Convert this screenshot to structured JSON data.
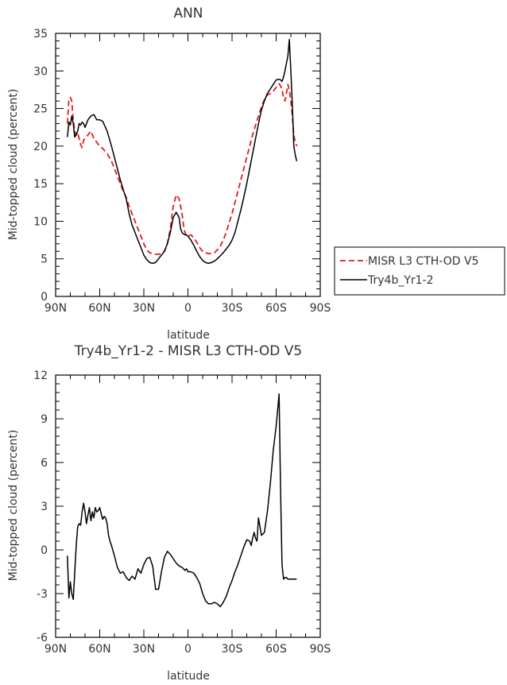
{
  "chart_data": [
    {
      "type": "line",
      "title": "ANN",
      "xlabel": "latitude",
      "ylabel": "Mid-topped cloud (percent)",
      "x_ticks": [
        90,
        60,
        30,
        0,
        -30,
        -60,
        -90
      ],
      "x_tick_labels": [
        "90N",
        "60N",
        "30N",
        "0",
        "30S",
        "60S",
        "90S"
      ],
      "xlim": [
        90,
        -90
      ],
      "ylim": [
        0,
        35
      ],
      "y_ticks": [
        0,
        5,
        10,
        15,
        20,
        25,
        30,
        35
      ],
      "y_tick_labels": [
        "0",
        "5",
        "10",
        "15",
        "20",
        "25",
        "30",
        "35"
      ],
      "legend": "outside-right",
      "series": [
        {
          "name": "MISR L3 CTH-OD V5",
          "color": "#e41a1c",
          "style": "dashed",
          "x": [
            82,
            81,
            80,
            79,
            78,
            77,
            76,
            75,
            74,
            73,
            72,
            71,
            70,
            68,
            66,
            64,
            62,
            60,
            58,
            55,
            52,
            50,
            48,
            46,
            44,
            42,
            40,
            38,
            36,
            34,
            32,
            30,
            28,
            26,
            24,
            22,
            20,
            18,
            16,
            14,
            12,
            10,
            8,
            6,
            5,
            4,
            3,
            2,
            1,
            0,
            -2,
            -4,
            -6,
            -8,
            -10,
            -12,
            -14,
            -16,
            -18,
            -20,
            -22,
            -24,
            -26,
            -28,
            -30,
            -32,
            -34,
            -36,
            -38,
            -40,
            -42,
            -44,
            -46,
            -48,
            -50,
            -52,
            -54,
            -56,
            -58,
            -60,
            -62,
            -63,
            -64,
            -65,
            -66,
            -67,
            -68,
            -69,
            -70,
            -71,
            -72,
            -73,
            -74
          ],
          "y": [
            23.0,
            26.2,
            26.5,
            26.0,
            23.5,
            22.0,
            21.5,
            21.8,
            21.0,
            20.2,
            19.8,
            20.8,
            21.0,
            21.5,
            22.0,
            21.0,
            20.5,
            20.0,
            19.7,
            19.0,
            18.0,
            17.0,
            16.0,
            15.0,
            14.0,
            13.2,
            12.0,
            11.0,
            10.0,
            9.0,
            8.0,
            7.0,
            6.2,
            5.8,
            5.7,
            5.6,
            5.6,
            5.7,
            6.0,
            7.0,
            9.0,
            12.0,
            13.5,
            13.0,
            12.0,
            11.0,
            9.5,
            8.5,
            8.0,
            8.0,
            8.2,
            7.8,
            7.2,
            6.5,
            6.0,
            5.8,
            5.7,
            5.7,
            5.8,
            6.2,
            6.7,
            7.5,
            8.5,
            9.8,
            11.0,
            12.5,
            14.0,
            15.5,
            17.0,
            18.5,
            20.0,
            21.5,
            22.8,
            24.0,
            25.2,
            26.2,
            26.8,
            27.0,
            27.3,
            27.8,
            28.3,
            28.0,
            27.5,
            26.5,
            26.0,
            27.0,
            28.2,
            27.5,
            26.0,
            24.0,
            21.5,
            20.5,
            20.0
          ]
        },
        {
          "name": "Try4b_Yr1-2",
          "color": "#000000",
          "style": "solid",
          "x": [
            82,
            81,
            80,
            79,
            78,
            77,
            76,
            75,
            74,
            73,
            72,
            71,
            70,
            68,
            66,
            64,
            62,
            60,
            58,
            55,
            52,
            50,
            48,
            46,
            44,
            42,
            40,
            38,
            36,
            34,
            32,
            30,
            28,
            26,
            24,
            22,
            20,
            18,
            16,
            14,
            12,
            10,
            8,
            6,
            5,
            4,
            3,
            2,
            1,
            0,
            -2,
            -4,
            -6,
            -8,
            -10,
            -12,
            -14,
            -16,
            -18,
            -20,
            -22,
            -24,
            -26,
            -28,
            -30,
            -32,
            -34,
            -36,
            -38,
            -40,
            -42,
            -44,
            -46,
            -48,
            -50,
            -52,
            -54,
            -56,
            -58,
            -60,
            -62,
            -63,
            -64,
            -65,
            -66,
            -67,
            -68,
            -69,
            -70,
            -71,
            -72,
            -73,
            -74
          ],
          "y": [
            21.2,
            23.2,
            22.8,
            24.0,
            23.0,
            21.2,
            21.5,
            22.0,
            23.0,
            22.8,
            23.2,
            23.0,
            22.5,
            23.5,
            24.0,
            24.2,
            23.5,
            23.5,
            23.3,
            22.0,
            20.0,
            18.5,
            17.0,
            15.5,
            14.2,
            13.0,
            11.0,
            9.5,
            8.5,
            7.5,
            6.5,
            5.5,
            4.9,
            4.5,
            4.4,
            4.5,
            5.0,
            5.5,
            6.0,
            7.0,
            8.5,
            10.5,
            11.2,
            10.5,
            9.0,
            8.5,
            8.3,
            8.2,
            8.2,
            8.0,
            7.5,
            6.8,
            6.0,
            5.3,
            4.8,
            4.5,
            4.4,
            4.5,
            4.7,
            5.0,
            5.4,
            5.8,
            6.3,
            6.8,
            7.5,
            8.5,
            10.0,
            11.5,
            13.2,
            15.0,
            17.0,
            19.0,
            21.0,
            23.0,
            24.8,
            26.0,
            27.0,
            27.6,
            28.2,
            28.8,
            28.9,
            28.8,
            28.6,
            29.2,
            30.0,
            31.0,
            32.0,
            34.2,
            30.0,
            25.5,
            20.0,
            18.8,
            18.0
          ]
        }
      ]
    },
    {
      "type": "line",
      "title": "Try4b_Yr1-2 - MISR L3 CTH-OD V5",
      "xlabel": "latitude",
      "ylabel": "Mid-topped cloud (percent)",
      "x_ticks": [
        90,
        60,
        30,
        0,
        -30,
        -60,
        -90
      ],
      "x_tick_labels": [
        "90N",
        "60N",
        "30N",
        "0",
        "30S",
        "60S",
        "90S"
      ],
      "xlim": [
        90,
        -90
      ],
      "ylim": [
        -6,
        12
      ],
      "y_ticks": [
        -6,
        -3,
        0,
        3,
        6,
        9,
        12
      ],
      "y_tick_labels": [
        "-6",
        "-3",
        "0",
        "3",
        "6",
        "9",
        "12"
      ],
      "series": [
        {
          "name": "Try4b_Yr1-2 - MISR L3 CTH-OD V5",
          "color": "#000000",
          "style": "solid",
          "x": [
            82,
            81,
            80,
            79,
            78,
            77,
            76,
            75,
            74,
            73,
            72,
            71,
            70,
            69,
            68,
            67,
            66,
            65,
            64,
            63,
            62,
            61,
            60,
            59,
            58,
            57,
            56,
            55,
            54,
            53,
            52,
            50,
            48,
            46,
            44,
            42,
            40,
            38,
            36,
            34,
            32,
            30,
            28,
            26,
            24,
            22,
            20,
            18,
            16,
            14,
            12,
            10,
            8,
            6,
            4,
            2,
            1,
            0,
            -2,
            -4,
            -6,
            -8,
            -10,
            -12,
            -14,
            -16,
            -18,
            -20,
            -22,
            -24,
            -26,
            -28,
            -30,
            -32,
            -34,
            -36,
            -38,
            -40,
            -42,
            -43,
            -44,
            -45,
            -46,
            -47,
            -48,
            -50,
            -52,
            -54,
            -56,
            -58,
            -60,
            -62,
            -63,
            -64,
            -65,
            -66,
            -67,
            -68,
            -69,
            -70,
            -71,
            -72,
            -73,
            -74
          ],
          "y": [
            -0.4,
            -3.3,
            -2.2,
            -3.0,
            -3.4,
            -1.6,
            0.3,
            1.6,
            1.8,
            1.7,
            2.6,
            3.2,
            2.6,
            1.8,
            2.4,
            2.9,
            2.0,
            2.6,
            2.2,
            2.9,
            2.6,
            2.7,
            2.9,
            2.5,
            2.1,
            2.3,
            2.2,
            1.8,
            1.0,
            0.6,
            0.3,
            -0.4,
            -1.2,
            -1.6,
            -1.5,
            -1.9,
            -2.1,
            -1.8,
            -2.0,
            -1.3,
            -1.6,
            -1.0,
            -0.6,
            -0.5,
            -1.1,
            -2.7,
            -2.7,
            -1.5,
            -0.5,
            -0.1,
            -0.3,
            -0.6,
            -0.9,
            -1.1,
            -1.2,
            -1.4,
            -1.3,
            -1.5,
            -1.5,
            -1.6,
            -1.9,
            -2.3,
            -3.0,
            -3.5,
            -3.7,
            -3.7,
            -3.6,
            -3.7,
            -3.9,
            -3.6,
            -3.2,
            -2.6,
            -2.1,
            -1.5,
            -1.0,
            -0.4,
            0.2,
            0.7,
            0.6,
            0.3,
            0.8,
            1.2,
            0.8,
            0.6,
            2.2,
            1.0,
            1.2,
            2.6,
            4.5,
            6.8,
            8.5,
            10.7,
            4.0,
            -1.0,
            -2.0,
            -1.9,
            -1.9,
            -2.0,
            -2.0,
            -2.0,
            -2.0,
            -2.0,
            -2.0,
            -2.0
          ]
        }
      ]
    }
  ]
}
